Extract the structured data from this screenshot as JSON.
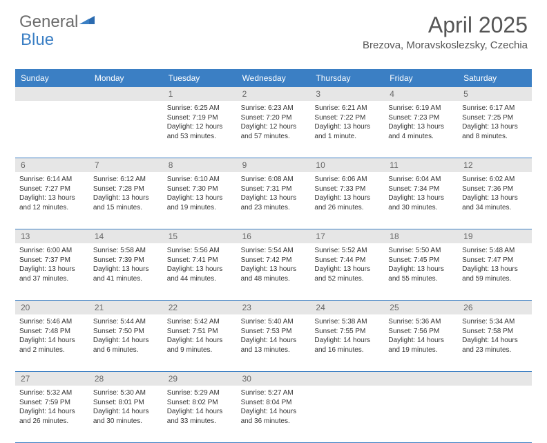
{
  "logo": {
    "part1": "General",
    "part2": "Blue"
  },
  "title": "April 2025",
  "location": "Brezova, Moravskoslezsky, Czechia",
  "colors": {
    "header_bg": "#3b7fc4",
    "header_text": "#ffffff",
    "daynum_bg": "#e6e6e6",
    "border": "#3b7fc4",
    "body_text": "#333333"
  },
  "day_names": [
    "Sunday",
    "Monday",
    "Tuesday",
    "Wednesday",
    "Thursday",
    "Friday",
    "Saturday"
  ],
  "weeks": [
    {
      "nums": [
        "",
        "",
        "1",
        "2",
        "3",
        "4",
        "5"
      ],
      "cells": [
        null,
        null,
        {
          "sr": "Sunrise: 6:25 AM",
          "ss": "Sunset: 7:19 PM",
          "dl": "Daylight: 12 hours and 53 minutes."
        },
        {
          "sr": "Sunrise: 6:23 AM",
          "ss": "Sunset: 7:20 PM",
          "dl": "Daylight: 12 hours and 57 minutes."
        },
        {
          "sr": "Sunrise: 6:21 AM",
          "ss": "Sunset: 7:22 PM",
          "dl": "Daylight: 13 hours and 1 minute."
        },
        {
          "sr": "Sunrise: 6:19 AM",
          "ss": "Sunset: 7:23 PM",
          "dl": "Daylight: 13 hours and 4 minutes."
        },
        {
          "sr": "Sunrise: 6:17 AM",
          "ss": "Sunset: 7:25 PM",
          "dl": "Daylight: 13 hours and 8 minutes."
        }
      ]
    },
    {
      "nums": [
        "6",
        "7",
        "8",
        "9",
        "10",
        "11",
        "12"
      ],
      "cells": [
        {
          "sr": "Sunrise: 6:14 AM",
          "ss": "Sunset: 7:27 PM",
          "dl": "Daylight: 13 hours and 12 minutes."
        },
        {
          "sr": "Sunrise: 6:12 AM",
          "ss": "Sunset: 7:28 PM",
          "dl": "Daylight: 13 hours and 15 minutes."
        },
        {
          "sr": "Sunrise: 6:10 AM",
          "ss": "Sunset: 7:30 PM",
          "dl": "Daylight: 13 hours and 19 minutes."
        },
        {
          "sr": "Sunrise: 6:08 AM",
          "ss": "Sunset: 7:31 PM",
          "dl": "Daylight: 13 hours and 23 minutes."
        },
        {
          "sr": "Sunrise: 6:06 AM",
          "ss": "Sunset: 7:33 PM",
          "dl": "Daylight: 13 hours and 26 minutes."
        },
        {
          "sr": "Sunrise: 6:04 AM",
          "ss": "Sunset: 7:34 PM",
          "dl": "Daylight: 13 hours and 30 minutes."
        },
        {
          "sr": "Sunrise: 6:02 AM",
          "ss": "Sunset: 7:36 PM",
          "dl": "Daylight: 13 hours and 34 minutes."
        }
      ]
    },
    {
      "nums": [
        "13",
        "14",
        "15",
        "16",
        "17",
        "18",
        "19"
      ],
      "cells": [
        {
          "sr": "Sunrise: 6:00 AM",
          "ss": "Sunset: 7:37 PM",
          "dl": "Daylight: 13 hours and 37 minutes."
        },
        {
          "sr": "Sunrise: 5:58 AM",
          "ss": "Sunset: 7:39 PM",
          "dl": "Daylight: 13 hours and 41 minutes."
        },
        {
          "sr": "Sunrise: 5:56 AM",
          "ss": "Sunset: 7:41 PM",
          "dl": "Daylight: 13 hours and 44 minutes."
        },
        {
          "sr": "Sunrise: 5:54 AM",
          "ss": "Sunset: 7:42 PM",
          "dl": "Daylight: 13 hours and 48 minutes."
        },
        {
          "sr": "Sunrise: 5:52 AM",
          "ss": "Sunset: 7:44 PM",
          "dl": "Daylight: 13 hours and 52 minutes."
        },
        {
          "sr": "Sunrise: 5:50 AM",
          "ss": "Sunset: 7:45 PM",
          "dl": "Daylight: 13 hours and 55 minutes."
        },
        {
          "sr": "Sunrise: 5:48 AM",
          "ss": "Sunset: 7:47 PM",
          "dl": "Daylight: 13 hours and 59 minutes."
        }
      ]
    },
    {
      "nums": [
        "20",
        "21",
        "22",
        "23",
        "24",
        "25",
        "26"
      ],
      "cells": [
        {
          "sr": "Sunrise: 5:46 AM",
          "ss": "Sunset: 7:48 PM",
          "dl": "Daylight: 14 hours and 2 minutes."
        },
        {
          "sr": "Sunrise: 5:44 AM",
          "ss": "Sunset: 7:50 PM",
          "dl": "Daylight: 14 hours and 6 minutes."
        },
        {
          "sr": "Sunrise: 5:42 AM",
          "ss": "Sunset: 7:51 PM",
          "dl": "Daylight: 14 hours and 9 minutes."
        },
        {
          "sr": "Sunrise: 5:40 AM",
          "ss": "Sunset: 7:53 PM",
          "dl": "Daylight: 14 hours and 13 minutes."
        },
        {
          "sr": "Sunrise: 5:38 AM",
          "ss": "Sunset: 7:55 PM",
          "dl": "Daylight: 14 hours and 16 minutes."
        },
        {
          "sr": "Sunrise: 5:36 AM",
          "ss": "Sunset: 7:56 PM",
          "dl": "Daylight: 14 hours and 19 minutes."
        },
        {
          "sr": "Sunrise: 5:34 AM",
          "ss": "Sunset: 7:58 PM",
          "dl": "Daylight: 14 hours and 23 minutes."
        }
      ]
    },
    {
      "nums": [
        "27",
        "28",
        "29",
        "30",
        "",
        "",
        ""
      ],
      "cells": [
        {
          "sr": "Sunrise: 5:32 AM",
          "ss": "Sunset: 7:59 PM",
          "dl": "Daylight: 14 hours and 26 minutes."
        },
        {
          "sr": "Sunrise: 5:30 AM",
          "ss": "Sunset: 8:01 PM",
          "dl": "Daylight: 14 hours and 30 minutes."
        },
        {
          "sr": "Sunrise: 5:29 AM",
          "ss": "Sunset: 8:02 PM",
          "dl": "Daylight: 14 hours and 33 minutes."
        },
        {
          "sr": "Sunrise: 5:27 AM",
          "ss": "Sunset: 8:04 PM",
          "dl": "Daylight: 14 hours and 36 minutes."
        },
        null,
        null,
        null
      ]
    }
  ]
}
